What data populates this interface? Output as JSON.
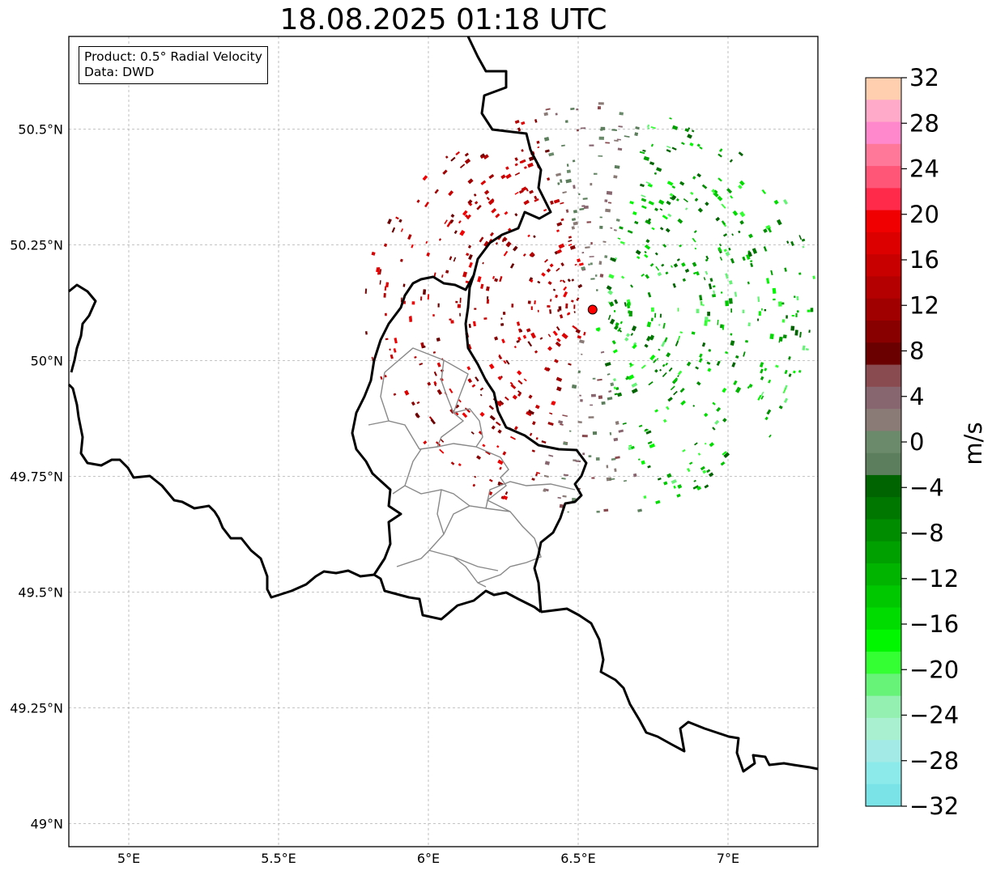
{
  "title": "18.08.2025 01:18 UTC",
  "info": {
    "product": "Product: 0.5° Radial Velocity",
    "data": "Data: DWD"
  },
  "map": {
    "lon_range": [
      4.8,
      7.3
    ],
    "lat_range": [
      48.95,
      50.7
    ],
    "lon_ticks": [
      {
        "value": 5.0,
        "label": "5°E"
      },
      {
        "value": 5.5,
        "label": "5.5°E"
      },
      {
        "value": 6.0,
        "label": "6°E"
      },
      {
        "value": 6.5,
        "label": "6.5°E"
      },
      {
        "value": 7.0,
        "label": "7°E"
      }
    ],
    "lat_ticks": [
      {
        "value": 49.0,
        "label": "49°N"
      },
      {
        "value": 49.25,
        "label": "49.25°N"
      },
      {
        "value": 49.5,
        "label": "49.5°N"
      },
      {
        "value": 49.75,
        "label": "49.75°N"
      },
      {
        "value": 50.0,
        "label": "50°N"
      },
      {
        "value": 50.25,
        "label": "50.25°N"
      },
      {
        "value": 50.5,
        "label": "50.5°N"
      }
    ],
    "radar_site": {
      "lon": 6.548,
      "lat": 50.11,
      "color": "#ff0000"
    },
    "gridlines": true
  },
  "colorbar": {
    "label": "m/s",
    "vmin": -32,
    "vmax": 32,
    "step": 2,
    "colors": [
      "#7ae3e8",
      "#8ceaea",
      "#a3eae6",
      "#a8f0d0",
      "#93f0b0",
      "#66f377",
      "#33ff33",
      "#00f700",
      "#00dc00",
      "#00c800",
      "#00b400",
      "#00a000",
      "#008c00",
      "#007800",
      "#006400",
      "#5c7e5c",
      "#6b8a6b",
      "#8a7b77",
      "#886670",
      "#8a4b50",
      "#6a0000",
      "#880000",
      "#a00000",
      "#b40000",
      "#c80000",
      "#dc0000",
      "#f00000",
      "#ff2a4a",
      "#ff5577",
      "#ff7799",
      "#ff88cc",
      "#ffaac8",
      "#ffcfb0"
    ],
    "tick_labels": [
      "32",
      "28",
      "24",
      "20",
      "16",
      "12",
      "8",
      "4",
      "0",
      "−4",
      "−8",
      "−12",
      "−16",
      "−20",
      "−24",
      "−28",
      "−32"
    ]
  }
}
